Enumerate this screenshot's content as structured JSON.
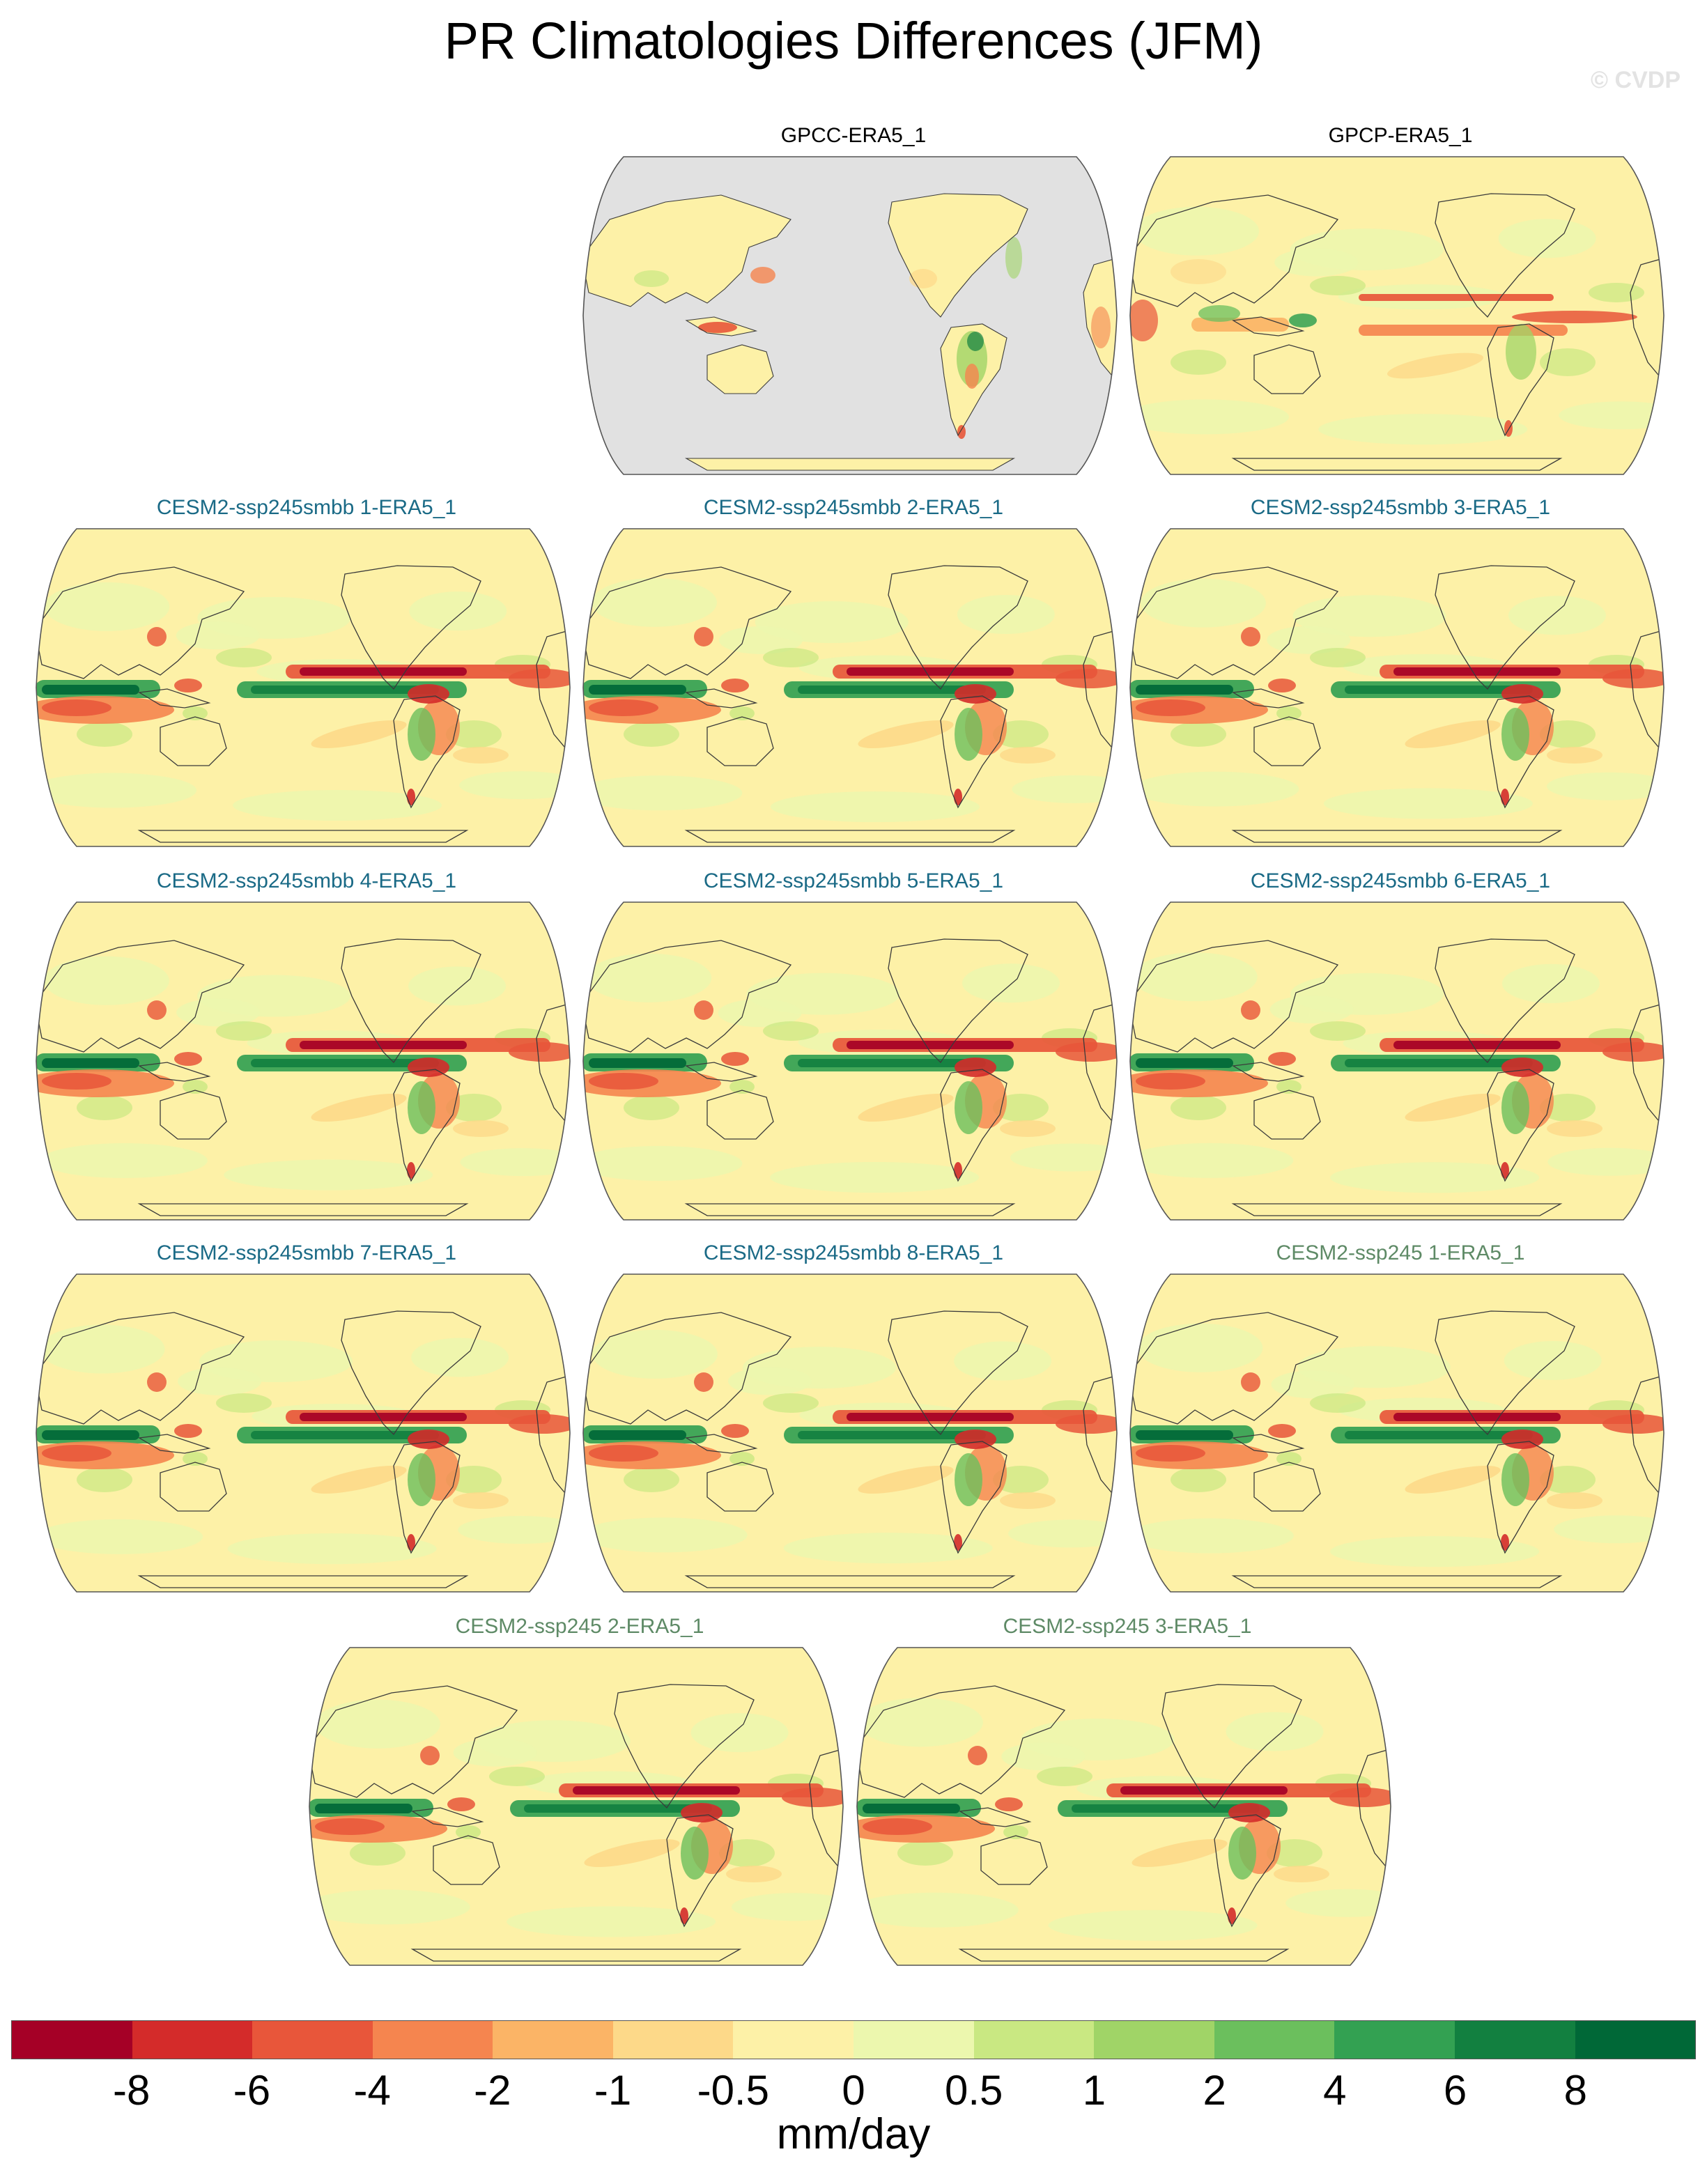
{
  "title": "PR Climatologies Differences (JFM)",
  "watermark": "© CVDP",
  "colors": {
    "obs_title": "#000000",
    "smbb_title": "#1a6a86",
    "ssp245_title": "#5e8a66",
    "land_gray": "#e1e1e1",
    "coast": "#3a3a3a"
  },
  "chart_data": {
    "type": "heatmap",
    "projection": "robinson",
    "units": "mm/day",
    "colorbar": {
      "labels": [
        "-8",
        "-6",
        "-4",
        "-2",
        "-1",
        "-0.5",
        "0",
        "0.5",
        "1",
        "2",
        "4",
        "6",
        "8"
      ],
      "levels": [
        -8,
        -6,
        -4,
        -2,
        -1,
        -0.5,
        0,
        0.5,
        1,
        2,
        4,
        6,
        8
      ],
      "colors": [
        "#a50026",
        "#d42b2a",
        "#e8563a",
        "#f5854f",
        "#fbb466",
        "#fdd989",
        "#fdf1a7",
        "#ecf7ae",
        "#c9e882",
        "#a0d467",
        "#6bbf5d",
        "#33a152",
        "#128040",
        "#006837"
      ]
    },
    "panels": [
      {
        "title": "GPCC-ERA5_1",
        "style": "obs",
        "kind": "land"
      },
      {
        "title": "GPCP-ERA5_1",
        "style": "obs",
        "kind": "obs"
      },
      {
        "title": "CESM2-ssp245smbb 1-ERA5_1",
        "style": "smbb",
        "kind": "model"
      },
      {
        "title": "CESM2-ssp245smbb 2-ERA5_1",
        "style": "smbb",
        "kind": "model"
      },
      {
        "title": "CESM2-ssp245smbb 3-ERA5_1",
        "style": "smbb",
        "kind": "model"
      },
      {
        "title": "CESM2-ssp245smbb 4-ERA5_1",
        "style": "smbb",
        "kind": "model"
      },
      {
        "title": "CESM2-ssp245smbb 5-ERA5_1",
        "style": "smbb",
        "kind": "model"
      },
      {
        "title": "CESM2-ssp245smbb 6-ERA5_1",
        "style": "smbb",
        "kind": "model"
      },
      {
        "title": "CESM2-ssp245smbb 7-ERA5_1",
        "style": "smbb",
        "kind": "model"
      },
      {
        "title": "CESM2-ssp245smbb 8-ERA5_1",
        "style": "smbb",
        "kind": "model"
      },
      {
        "title": "CESM2-ssp245 1-ERA5_1",
        "style": "ssp245",
        "kind": "model"
      },
      {
        "title": "CESM2-ssp245 2-ERA5_1",
        "style": "ssp245",
        "kind": "model"
      },
      {
        "title": "CESM2-ssp245 3-ERA5_1",
        "style": "ssp245",
        "kind": "model"
      }
    ]
  }
}
